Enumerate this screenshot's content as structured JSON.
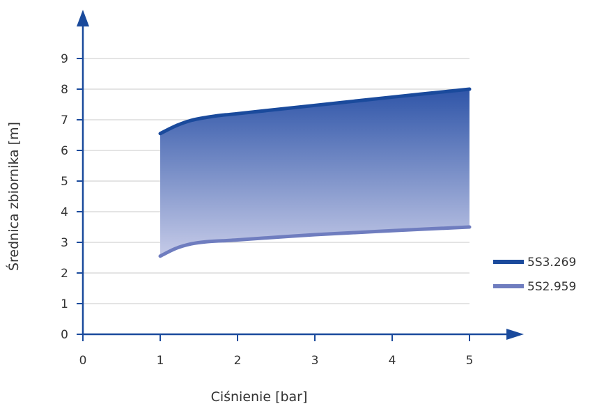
{
  "chart_data": {
    "type": "area",
    "xlabel": "Ciśnienie [bar]",
    "ylabel": "Średnica zbiornika [m]",
    "xlim": [
      0,
      5
    ],
    "ylim": [
      0,
      9
    ],
    "x_ticks": [
      "0",
      "1",
      "2",
      "3",
      "4",
      "5"
    ],
    "y_ticks": [
      "0",
      "1",
      "2",
      "3",
      "4",
      "5",
      "6",
      "7",
      "8",
      "9"
    ],
    "grid": true,
    "legend_position": "right",
    "series": [
      {
        "name": "5S3.269",
        "color": "#1a4a9c",
        "x": [
          1.0,
          1.2,
          1.4,
          1.6,
          1.8,
          2.0,
          3.0,
          4.0,
          5.0
        ],
        "y": [
          6.55,
          6.8,
          6.98,
          7.08,
          7.15,
          7.2,
          7.47,
          7.74,
          8.0
        ]
      },
      {
        "name": "5S2.959",
        "color": "#6f7dbf",
        "x": [
          1.0,
          1.2,
          1.4,
          1.6,
          1.8,
          2.0,
          3.0,
          4.0,
          5.0
        ],
        "y": [
          2.55,
          2.8,
          2.95,
          3.02,
          3.05,
          3.08,
          3.25,
          3.38,
          3.5
        ]
      }
    ],
    "fill_between": {
      "top_color": "#2f55a8",
      "bottom_color": "#c6cbe8"
    },
    "axis_color": "#1a4a9c",
    "grid_color": "#c8c8c8"
  }
}
